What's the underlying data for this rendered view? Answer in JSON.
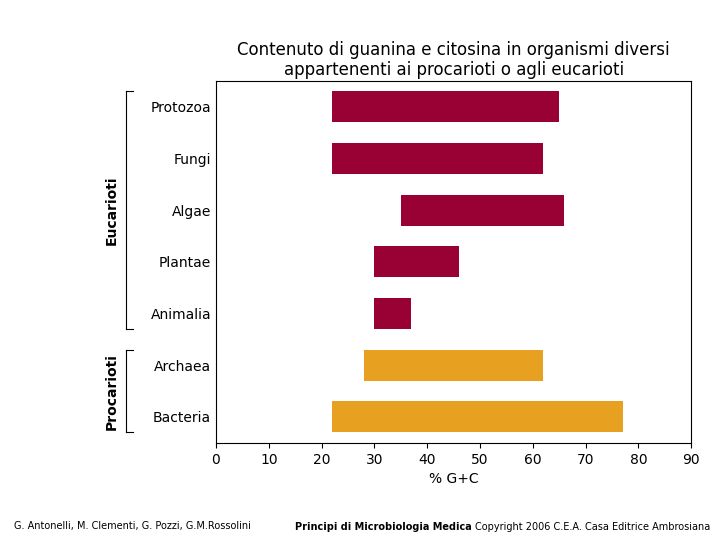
{
  "chart_data": {
    "type": "bar",
    "orientation": "horizontal",
    "title": "Contenuto di guanina e citosina in organismi diversi appartenenti ai procarioti o agli eucarioti",
    "categories": [
      "Protozoa",
      "Fungi",
      "Algae",
      "Plantae",
      "Animalia",
      "Archaea",
      "Bacteria"
    ],
    "starts": [
      22,
      22,
      35,
      30,
      30,
      28,
      22
    ],
    "values": [
      65,
      62,
      66,
      46,
      37,
      62,
      77
    ],
    "colors": [
      "#990033",
      "#990033",
      "#990033",
      "#990033",
      "#990033",
      "#E8A020",
      "#E8A020"
    ],
    "x_label": "% G+C",
    "xlim": [
      0,
      90
    ],
    "xticks": [
      0,
      10,
      20,
      30,
      40,
      50,
      60,
      70,
      80,
      90
    ],
    "grid": false,
    "annotations": [
      {
        "text": "Eucarioti",
        "categories": [
          "Protozoa",
          "Fungi",
          "Algae",
          "Plantae",
          "Animalia"
        ]
      },
      {
        "text": "Procarioti",
        "categories": [
          "Archaea",
          "Bacteria"
        ]
      }
    ],
    "footer": [
      "G. Antonelli, M. Clementi, G. Pozzi, G.M.Rossolini",
      "Principi di Microbiologia Medica",
      "Copyright 2006 C.E.A. Casa Editrice Ambrosiana"
    ]
  }
}
